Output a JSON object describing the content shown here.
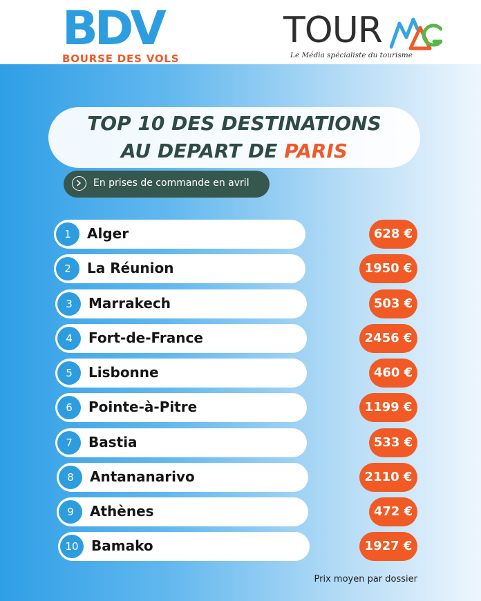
{
  "brand_left": {
    "letters": "BDV",
    "subtitle": "BOURSE DES VOLS"
  },
  "brand_right": {
    "word": "TOUR",
    "suffix": "MAG",
    "tagline": "Le Média spécialiste du tourisme"
  },
  "title": {
    "line1": "TOP 10 DES DESTINATIONS",
    "line2_prefix": "AU DEPART DE ",
    "line2_accent": "PARIS"
  },
  "subtitle": {
    "text": "En prises de commande en avril",
    "icon": "chevron-right-icon"
  },
  "colors": {
    "accent_blue": "#2e9de0",
    "accent_orange": "#f15a24",
    "dark_green": "#36574d"
  },
  "destinations": [
    {
      "rank": "1",
      "name": "Alger",
      "price": "628 €"
    },
    {
      "rank": "2",
      "name": "La Réunion",
      "price": "1950 €"
    },
    {
      "rank": "3",
      "name": "Marrakech",
      "price": "503 €"
    },
    {
      "rank": "4",
      "name": "Fort-de-France",
      "price": "2456 €"
    },
    {
      "rank": "5",
      "name": "Lisbonne",
      "price": "460 €"
    },
    {
      "rank": "6",
      "name": "Pointe-à-Pitre",
      "price": "1199 €"
    },
    {
      "rank": "7",
      "name": "Bastia",
      "price": "533 €"
    },
    {
      "rank": "8",
      "name": "Antananarivo",
      "price": "2110 €"
    },
    {
      "rank": "9",
      "name": "Athènes",
      "price": "472 €"
    },
    {
      "rank": "10",
      "name": "Bamako",
      "price": "1927 €"
    }
  ],
  "footnote": "Prix moyen par dossier"
}
